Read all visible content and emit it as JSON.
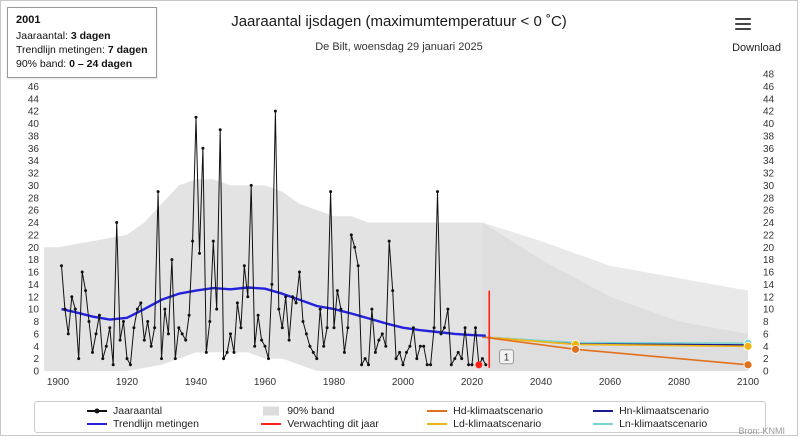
{
  "toolbar": {
    "download_label": "Download"
  },
  "tooltip": {
    "year": "2001",
    "lines": [
      {
        "label": "Jaaraantal:",
        "value": "3 dagen"
      },
      {
        "label": "Trendlijn metingen:",
        "value": "7 dagen"
      },
      {
        "label": "90% band:",
        "value": "0 – 24 dagen"
      }
    ]
  },
  "footer": {
    "source": "Bron: KNMI"
  },
  "legend": {
    "items": [
      {
        "label": "Jaaraantal",
        "type": "dot-line",
        "color": "#111111"
      },
      {
        "label": "90% band",
        "type": "box",
        "color": "#dcdcdc"
      },
      {
        "label": "Hd-klimaatscenario",
        "type": "line",
        "color": "#e2711d"
      },
      {
        "label": "Hn-klimaatscenario",
        "type": "line",
        "color": "#1a1a8c"
      },
      {
        "label": "Trendlijn metingen",
        "type": "line",
        "color": "#2222dd"
      },
      {
        "label": "Verwachting dit jaar",
        "type": "line",
        "color": "#ff2015"
      },
      {
        "label": "Ld-klimaatscenario",
        "type": "line",
        "color": "#f0b310"
      },
      {
        "label": "Ln-klimaatscenario",
        "type": "line",
        "color": "#7fd4cf"
      }
    ]
  },
  "chart_data": {
    "type": "line",
    "title": "Jaaraantal ijsdagen (maximumtemperatuur < 0 ˚C)",
    "subtitle": "De Bilt, woensdag 29 januari 2025",
    "ylim": [
      0,
      48
    ],
    "xlim": [
      1896,
      2102
    ],
    "grid": false,
    "legend_position": "bottom",
    "y_ticks": [
      0,
      2,
      4,
      6,
      8,
      10,
      12,
      14,
      16,
      18,
      20,
      22,
      24,
      26,
      28,
      30,
      32,
      34,
      36,
      38,
      40,
      42,
      44,
      46,
      48
    ],
    "x_ticks": [
      1900,
      1920,
      1940,
      1960,
      1980,
      2000,
      2020,
      2040,
      2060,
      2080,
      2100
    ],
    "series_jaaraantal": {
      "name": "Jaaraantal",
      "color": "#111111",
      "start_year": 1901,
      "values": [
        17,
        10,
        6,
        12,
        10,
        2,
        16,
        13,
        8,
        3,
        6,
        9,
        2,
        4,
        7,
        1,
        24,
        5,
        8,
        2,
        1,
        7,
        10,
        11,
        5,
        8,
        4,
        7,
        29,
        2,
        10,
        6,
        18,
        2,
        7,
        6,
        5,
        9,
        21,
        41,
        19,
        36,
        3,
        8,
        21,
        10,
        39,
        2,
        3,
        6,
        3,
        11,
        7,
        17,
        12,
        30,
        4,
        9,
        5,
        4,
        2,
        14,
        42,
        10,
        7,
        12,
        5,
        12,
        11,
        16,
        8,
        6,
        4,
        3,
        2,
        10,
        4,
        7,
        29,
        7,
        13,
        10,
        3,
        7,
        22,
        20,
        17,
        1,
        2,
        1,
        10,
        3,
        5,
        6,
        4,
        21,
        13,
        2,
        3,
        1,
        3,
        4,
        7,
        2,
        4,
        4,
        1,
        1,
        7,
        29,
        6,
        7,
        10,
        1,
        2,
        3,
        2,
        7,
        1,
        1,
        7,
        1,
        2,
        1
      ]
    },
    "trend": {
      "name": "Trendlijn metingen",
      "color": "#2222dd",
      "years": [
        1901,
        1905,
        1910,
        1915,
        1920,
        1925,
        1930,
        1935,
        1940,
        1945,
        1950,
        1955,
        1960,
        1965,
        1970,
        1975,
        1980,
        1985,
        1990,
        1995,
        2000,
        2005,
        2010,
        2015,
        2020,
        2024
      ],
      "values": [
        10,
        9.5,
        8.8,
        8.3,
        8.6,
        10,
        11.5,
        12.5,
        13,
        13.4,
        13.2,
        13.5,
        13.3,
        12.5,
        11.5,
        10.5,
        10,
        9.3,
        8.5,
        7.7,
        7,
        6.6,
        6.3,
        6,
        5.8,
        5.7
      ]
    },
    "bands": [
      {
        "name": "90%-band-metingen",
        "color": "#e3e3e3",
        "opacity": 1,
        "upper": [
          [
            1896,
            20
          ],
          [
            1900,
            20
          ],
          [
            1910,
            21
          ],
          [
            1920,
            22
          ],
          [
            1925,
            24
          ],
          [
            1930,
            27
          ],
          [
            1935,
            30
          ],
          [
            1940,
            31
          ],
          [
            1945,
            31
          ],
          [
            1950,
            30
          ],
          [
            1955,
            30
          ],
          [
            1960,
            30
          ],
          [
            1965,
            29
          ],
          [
            1970,
            27
          ],
          [
            1975,
            26
          ],
          [
            1980,
            25
          ],
          [
            1985,
            25
          ],
          [
            1990,
            24
          ],
          [
            1995,
            24
          ],
          [
            2000,
            24
          ],
          [
            2010,
            24
          ],
          [
            2023,
            24
          ]
        ],
        "lower": [
          [
            1896,
            0
          ],
          [
            1920,
            0
          ],
          [
            1930,
            1
          ],
          [
            1935,
            2
          ],
          [
            1940,
            3
          ],
          [
            1950,
            3
          ],
          [
            1955,
            3
          ],
          [
            1960,
            2
          ],
          [
            1965,
            2
          ],
          [
            1970,
            1
          ],
          [
            1975,
            0
          ],
          [
            2023,
            0
          ]
        ]
      },
      {
        "name": "90%-band-projectie-breed",
        "color": "#e7e7e7",
        "opacity": 0.9,
        "upper": [
          [
            2023,
            24
          ],
          [
            2040,
            21
          ],
          [
            2060,
            17
          ],
          [
            2080,
            15
          ],
          [
            2100,
            13
          ]
        ],
        "lower": [
          [
            2023,
            0
          ],
          [
            2100,
            0
          ]
        ]
      },
      {
        "name": "90%-band-projectie-smal",
        "color": "#d9d9d9",
        "opacity": 0.75,
        "upper": [
          [
            2023,
            24
          ],
          [
            2040,
            18
          ],
          [
            2060,
            12
          ],
          [
            2080,
            8
          ],
          [
            2100,
            6
          ]
        ],
        "lower": [
          [
            2023,
            0
          ],
          [
            2100,
            0
          ]
        ]
      }
    ],
    "scenarios": [
      {
        "name": "Hn-klimaatscenario",
        "color": "#1a1a8c",
        "points": [
          [
            2023,
            5.5
          ],
          [
            2050,
            4.5
          ],
          [
            2100,
            4.2
          ]
        ],
        "markers": []
      },
      {
        "name": "Ln-klimaatscenario",
        "color": "#7fd4cf",
        "points": [
          [
            2023,
            5.5
          ],
          [
            2050,
            4.6
          ],
          [
            2100,
            4.5
          ]
        ],
        "markers": [
          [
            2100,
            4.5
          ]
        ]
      },
      {
        "name": "Ld-klimaatscenario",
        "color": "#f0b310",
        "points": [
          [
            2023,
            5.5
          ],
          [
            2050,
            4.3
          ],
          [
            2100,
            4
          ]
        ],
        "markers": [
          [
            2050,
            4.3
          ],
          [
            2100,
            4
          ]
        ]
      },
      {
        "name": "Hd-klimaatscenario",
        "color": "#e2711d",
        "points": [
          [
            2023,
            5.5
          ],
          [
            2050,
            3.5
          ],
          [
            2100,
            1
          ]
        ],
        "markers": [
          [
            2050,
            3.5
          ],
          [
            2100,
            1
          ]
        ]
      }
    ],
    "forecast_line": {
      "name": "Verwachting dit jaar",
      "color": "#ff2015",
      "x": 2025,
      "y0": 0.5,
      "y1": 13
    },
    "forecast_dot": {
      "color": "#ff2015",
      "x": 2022,
      "y": 1
    },
    "annotation": {
      "label": "1",
      "x": 2030,
      "y": 2.3
    }
  }
}
